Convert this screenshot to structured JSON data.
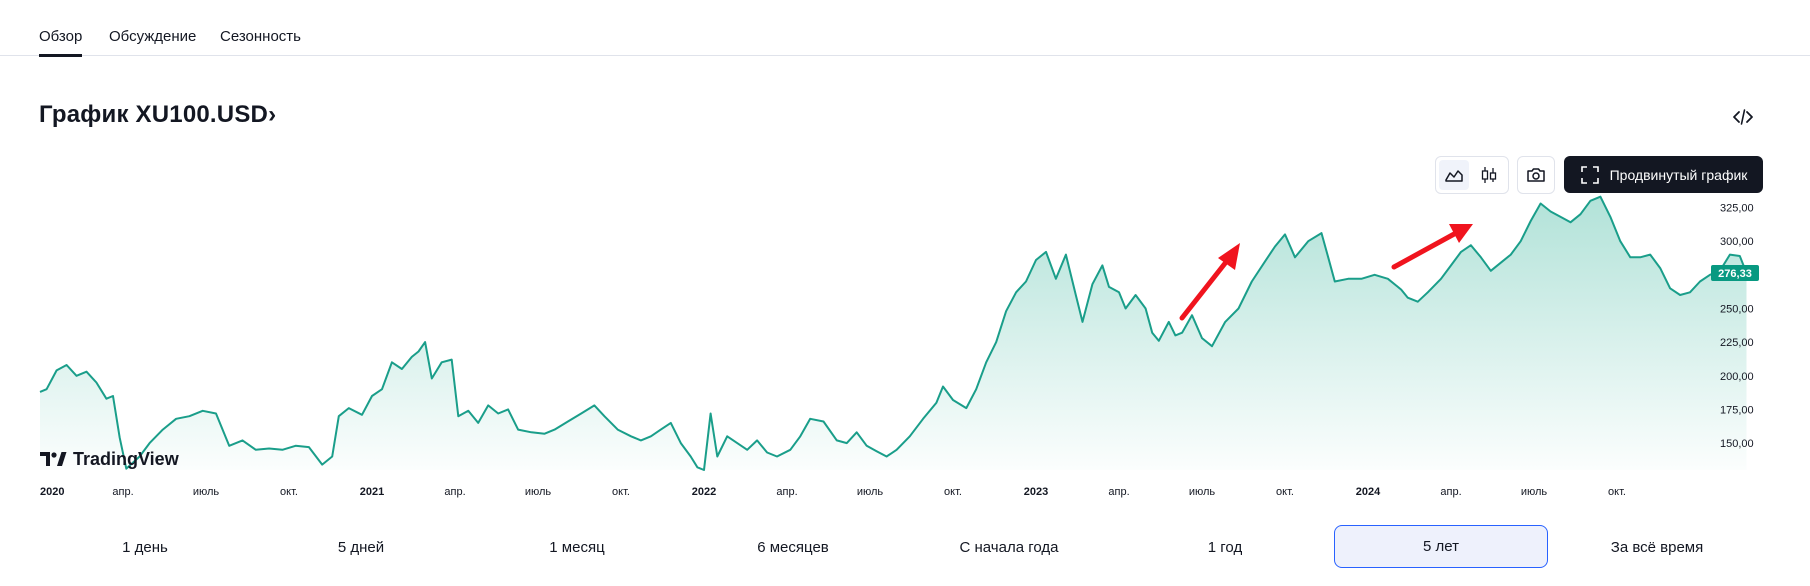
{
  "tabs": [
    {
      "label": "Обзор",
      "active": true
    },
    {
      "label": "Обсуждение",
      "active": false
    },
    {
      "label": "Сезонность",
      "active": false
    }
  ],
  "title": "График XU100.USD",
  "title_chevron": "›",
  "toolbar": {
    "area_chart_icon": "area-chart-icon",
    "candles_icon": "candlestick-icon",
    "camera_icon": "camera-icon",
    "advanced_chart_label": "Продвинутый график",
    "embed_icon": "code-embed-icon"
  },
  "logo_text": "TradingView",
  "colors": {
    "line": "#1a9e8a",
    "area_top": "#b7e4dc",
    "price_label_bg": "#089981",
    "arrows": "#f0141e",
    "active_period_border": "#2962ff"
  },
  "periods": [
    "1 день",
    "5 дней",
    "1 месяц",
    "6 месяцев",
    "С начала года",
    "1 год",
    "5 лет",
    "За всё время"
  ],
  "active_period": "5 лет",
  "chart_data": {
    "type": "area",
    "symbol": "XU100.USD",
    "last_value": "276,33",
    "y_ticks": [
      "325,00",
      "300,00",
      "275,00",
      "250,00",
      "225,00",
      "200,00",
      "175,00",
      "150,00"
    ],
    "y_tick_values": [
      325,
      300,
      275,
      250,
      225,
      200,
      175,
      150
    ],
    "ylim": [
      130,
      338
    ],
    "x_ticks": [
      {
        "label": "2020",
        "t": 2020.0,
        "year": true
      },
      {
        "label": "апр.",
        "t": 2020.25
      },
      {
        "label": "июль",
        "t": 2020.5
      },
      {
        "label": "окт.",
        "t": 2020.75
      },
      {
        "label": "2021",
        "t": 2021.0,
        "year": true
      },
      {
        "label": "апр.",
        "t": 2021.25
      },
      {
        "label": "июль",
        "t": 2021.5
      },
      {
        "label": "окт.",
        "t": 2021.75
      },
      {
        "label": "2022",
        "t": 2022.0,
        "year": true
      },
      {
        "label": "апр.",
        "t": 2022.25
      },
      {
        "label": "июль",
        "t": 2022.5
      },
      {
        "label": "окт.",
        "t": 2022.75
      },
      {
        "label": "2023",
        "t": 2023.0,
        "year": true
      },
      {
        "label": "апр.",
        "t": 2023.25
      },
      {
        "label": "июль",
        "t": 2023.5
      },
      {
        "label": "окт.",
        "t": 2023.75
      },
      {
        "label": "2024",
        "t": 2024.0,
        "year": true
      },
      {
        "label": "апр.",
        "t": 2024.25
      },
      {
        "label": "июль",
        "t": 2024.5
      },
      {
        "label": "окт.",
        "t": 2024.75
      }
    ],
    "xlim": [
      2020.0,
      2025.0
    ],
    "series": [
      {
        "points": [
          [
            2020.0,
            188
          ],
          [
            2020.02,
            190
          ],
          [
            2020.05,
            204
          ],
          [
            2020.08,
            208
          ],
          [
            2020.11,
            200
          ],
          [
            2020.14,
            203
          ],
          [
            2020.17,
            195
          ],
          [
            2020.2,
            183
          ],
          [
            2020.22,
            185
          ],
          [
            2020.24,
            154
          ],
          [
            2020.26,
            131
          ],
          [
            2020.3,
            140
          ],
          [
            2020.33,
            150
          ],
          [
            2020.37,
            160
          ],
          [
            2020.41,
            168
          ],
          [
            2020.45,
            170
          ],
          [
            2020.49,
            174
          ],
          [
            2020.53,
            172
          ],
          [
            2020.57,
            148
          ],
          [
            2020.61,
            152
          ],
          [
            2020.65,
            145
          ],
          [
            2020.69,
            146
          ],
          [
            2020.73,
            145
          ],
          [
            2020.77,
            148
          ],
          [
            2020.81,
            147
          ],
          [
            2020.85,
            134
          ],
          [
            2020.88,
            140
          ],
          [
            2020.9,
            170
          ],
          [
            2020.93,
            176
          ],
          [
            2020.97,
            171
          ],
          [
            2021.0,
            185
          ],
          [
            2021.03,
            190
          ],
          [
            2021.06,
            210
          ],
          [
            2021.09,
            205
          ],
          [
            2021.12,
            214
          ],
          [
            2021.14,
            218
          ],
          [
            2021.16,
            225
          ],
          [
            2021.18,
            198
          ],
          [
            2021.21,
            210
          ],
          [
            2021.24,
            212
          ],
          [
            2021.26,
            170
          ],
          [
            2021.29,
            174
          ],
          [
            2021.32,
            165
          ],
          [
            2021.35,
            178
          ],
          [
            2021.38,
            172
          ],
          [
            2021.41,
            175
          ],
          [
            2021.44,
            160
          ],
          [
            2021.48,
            158
          ],
          [
            2021.52,
            157
          ],
          [
            2021.55,
            160
          ],
          [
            2021.59,
            166
          ],
          [
            2021.63,
            172
          ],
          [
            2021.67,
            178
          ],
          [
            2021.7,
            170
          ],
          [
            2021.74,
            160
          ],
          [
            2021.78,
            155
          ],
          [
            2021.81,
            152
          ],
          [
            2021.84,
            155
          ],
          [
            2021.87,
            160
          ],
          [
            2021.9,
            165
          ],
          [
            2021.93,
            150
          ],
          [
            2021.96,
            140
          ],
          [
            2021.98,
            132
          ],
          [
            2022.0,
            130
          ],
          [
            2022.02,
            172
          ],
          [
            2022.04,
            140
          ],
          [
            2022.07,
            155
          ],
          [
            2022.1,
            150
          ],
          [
            2022.13,
            145
          ],
          [
            2022.16,
            152
          ],
          [
            2022.19,
            143
          ],
          [
            2022.22,
            140
          ],
          [
            2022.26,
            145
          ],
          [
            2022.29,
            155
          ],
          [
            2022.32,
            168
          ],
          [
            2022.36,
            166
          ],
          [
            2022.4,
            152
          ],
          [
            2022.43,
            150
          ],
          [
            2022.46,
            158
          ],
          [
            2022.49,
            148
          ],
          [
            2022.52,
            144
          ],
          [
            2022.55,
            140
          ],
          [
            2022.58,
            145
          ],
          [
            2022.62,
            155
          ],
          [
            2022.66,
            168
          ],
          [
            2022.7,
            180
          ],
          [
            2022.72,
            192
          ],
          [
            2022.75,
            182
          ],
          [
            2022.79,
            176
          ],
          [
            2022.82,
            190
          ],
          [
            2022.85,
            210
          ],
          [
            2022.88,
            225
          ],
          [
            2022.91,
            248
          ],
          [
            2022.94,
            262
          ],
          [
            2022.97,
            270
          ],
          [
            2023.0,
            286
          ],
          [
            2023.03,
            292
          ],
          [
            2023.06,
            272
          ],
          [
            2023.09,
            290
          ],
          [
            2023.12,
            260
          ],
          [
            2023.14,
            240
          ],
          [
            2023.17,
            268
          ],
          [
            2023.2,
            282
          ],
          [
            2023.22,
            266
          ],
          [
            2023.25,
            262
          ],
          [
            2023.27,
            250
          ],
          [
            2023.3,
            260
          ],
          [
            2023.33,
            250
          ],
          [
            2023.35,
            232
          ],
          [
            2023.37,
            226
          ],
          [
            2023.4,
            240
          ],
          [
            2023.42,
            230
          ],
          [
            2023.44,
            232
          ],
          [
            2023.47,
            245
          ],
          [
            2023.5,
            228
          ],
          [
            2023.53,
            222
          ],
          [
            2023.57,
            240
          ],
          [
            2023.61,
            250
          ],
          [
            2023.65,
            270
          ],
          [
            2023.69,
            285
          ],
          [
            2023.72,
            296
          ],
          [
            2023.75,
            305
          ],
          [
            2023.78,
            288
          ],
          [
            2023.82,
            300
          ],
          [
            2023.86,
            306
          ],
          [
            2023.88,
            288
          ],
          [
            2023.9,
            270
          ],
          [
            2023.94,
            272
          ],
          [
            2023.98,
            272
          ],
          [
            2024.02,
            275
          ],
          [
            2024.06,
            272
          ],
          [
            2024.1,
            264
          ],
          [
            2024.12,
            258
          ],
          [
            2024.15,
            255
          ],
          [
            2024.18,
            262
          ],
          [
            2024.22,
            272
          ],
          [
            2024.25,
            282
          ],
          [
            2024.28,
            292
          ],
          [
            2024.31,
            297
          ],
          [
            2024.34,
            288
          ],
          [
            2024.37,
            278
          ],
          [
            2024.4,
            284
          ],
          [
            2024.43,
            290
          ],
          [
            2024.46,
            300
          ],
          [
            2024.49,
            315
          ],
          [
            2024.52,
            328
          ],
          [
            2024.55,
            322
          ],
          [
            2024.58,
            318
          ],
          [
            2024.61,
            314
          ],
          [
            2024.64,
            320
          ],
          [
            2024.67,
            330
          ],
          [
            2024.7,
            333
          ],
          [
            2024.73,
            318
          ],
          [
            2024.76,
            300
          ],
          [
            2024.79,
            288
          ],
          [
            2024.82,
            288
          ],
          [
            2024.85,
            290
          ],
          [
            2024.88,
            280
          ],
          [
            2024.91,
            265
          ],
          [
            2024.94,
            260
          ],
          [
            2024.97,
            262
          ],
          [
            2025.0,
            270
          ],
          [
            2025.03,
            275
          ],
          [
            2025.06,
            278
          ],
          [
            2025.09,
            290
          ],
          [
            2025.12,
            289
          ],
          [
            2025.14,
            276.33
          ]
        ]
      }
    ],
    "annotations": [
      "upward red arrow (2023)",
      "upward red arrow (2024)"
    ]
  }
}
